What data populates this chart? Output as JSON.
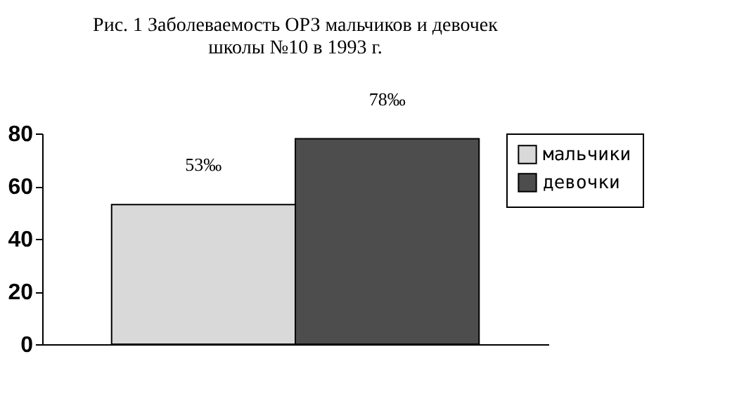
{
  "chart_data": {
    "type": "bar",
    "title": "Рис. 1 Заболеваемость ОРЗ мальчиков и девочек\nшколы №10 в 1993 г.",
    "categories": [
      null
    ],
    "series": [
      {
        "name": "мальчики",
        "color": "#d9d9d9",
        "values": [
          53
        ],
        "value_labels": [
          "53‰"
        ]
      },
      {
        "name": "девочки",
        "color": "#4d4d4d",
        "values": [
          78
        ],
        "value_labels": [
          "78‰"
        ]
      }
    ],
    "ylim": [
      0,
      80
    ],
    "yticks": [
      0,
      20,
      40,
      60,
      80
    ],
    "grid": false,
    "legend": "top right"
  }
}
